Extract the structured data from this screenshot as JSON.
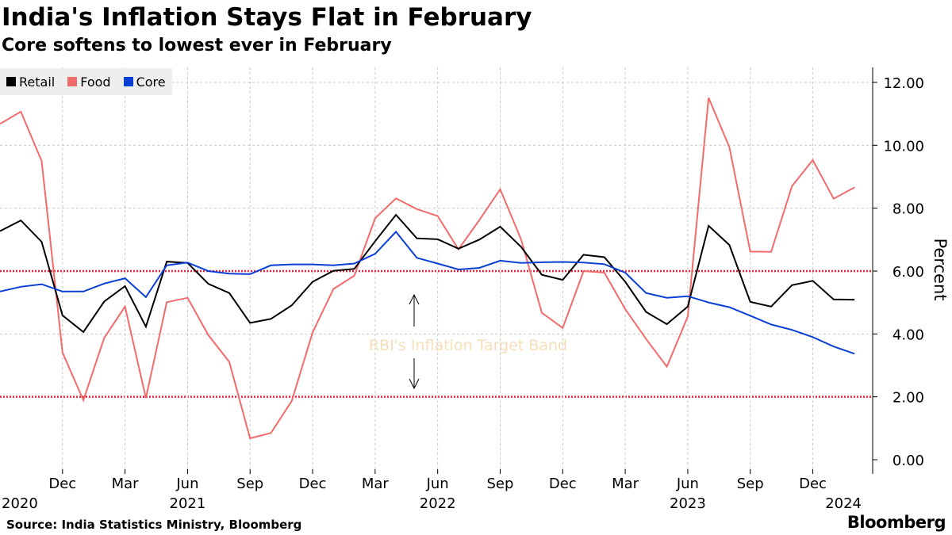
{
  "title": "India's Inflation Stays Flat in February",
  "subtitle": "Core softens to lowest ever in February",
  "source": "Source: India Statistics Ministry, Bloomberg",
  "brand": "Bloomberg",
  "chart_data": {
    "type": "line",
    "title": "India's Inflation Stays Flat in February",
    "subtitle": "Core softens to lowest ever in February",
    "ylabel": "Percent",
    "ylim": [
      0,
      12
    ],
    "yticks": [
      "0.00",
      "2.00",
      "4.00",
      "6.00",
      "8.00",
      "10.00",
      "12.00"
    ],
    "ytick_values": [
      0,
      2,
      4,
      6,
      8,
      10,
      12
    ],
    "x_start": "2020-09",
    "x_end": "2024-02",
    "xticks": [
      {
        "index": 3,
        "month": "Dec",
        "year": "2020"
      },
      {
        "index": 6,
        "month": "Mar",
        "year": ""
      },
      {
        "index": 9,
        "month": "Jun",
        "year": "2021"
      },
      {
        "index": 12,
        "month": "Sep",
        "year": ""
      },
      {
        "index": 15,
        "month": "Dec",
        "year": ""
      },
      {
        "index": 18,
        "month": "Mar",
        "year": ""
      },
      {
        "index": 21,
        "month": "Jun",
        "year": "2022"
      },
      {
        "index": 24,
        "month": "Sep",
        "year": ""
      },
      {
        "index": 27,
        "month": "Dec",
        "year": ""
      },
      {
        "index": 30,
        "month": "Mar",
        "year": ""
      },
      {
        "index": 33,
        "month": "Jun",
        "year": "2023"
      },
      {
        "index": 36,
        "month": "Sep",
        "year": ""
      },
      {
        "index": 39,
        "month": "Dec",
        "year": "2024"
      }
    ],
    "legend_position": "top-left",
    "grid": true,
    "reference_lines": [
      2,
      6
    ],
    "annotation": "RBI's Inflation Target Band",
    "series": [
      {
        "name": "Retail",
        "color": "#000000",
        "values": [
          7.27,
          7.61,
          6.93,
          4.59,
          4.06,
          5.03,
          5.52,
          4.23,
          6.3,
          6.26,
          5.59,
          5.3,
          4.35,
          4.48,
          4.91,
          5.66,
          6.01,
          6.07,
          6.95,
          7.79,
          7.04,
          7.01,
          6.71,
          7.0,
          7.41,
          6.77,
          5.88,
          5.72,
          6.52,
          6.44,
          5.66,
          4.7,
          4.31,
          4.87,
          7.44,
          6.83,
          5.02,
          4.87,
          5.55,
          5.69,
          5.1,
          5.09
        ]
      },
      {
        "name": "Food",
        "color": "#f26b6b",
        "values": [
          10.68,
          11.07,
          9.5,
          3.41,
          1.89,
          3.87,
          4.87,
          1.96,
          5.01,
          5.15,
          3.96,
          3.11,
          0.68,
          0.85,
          1.87,
          4.05,
          5.43,
          5.85,
          7.68,
          8.31,
          7.97,
          7.75,
          6.69,
          7.62,
          8.6,
          7.01,
          4.67,
          4.19,
          6.0,
          5.95,
          4.79,
          3.84,
          2.96,
          4.55,
          11.51,
          9.94,
          6.62,
          6.61,
          8.7,
          9.53,
          8.3,
          8.66
        ]
      },
      {
        "name": "Core",
        "color": "#0a3fd6",
        "values": [
          5.35,
          5.5,
          5.58,
          5.35,
          5.35,
          5.6,
          5.77,
          5.17,
          6.18,
          6.27,
          6.0,
          5.92,
          5.9,
          6.18,
          6.21,
          6.21,
          6.18,
          6.24,
          6.55,
          7.25,
          6.42,
          6.24,
          6.05,
          6.1,
          6.33,
          6.26,
          6.28,
          6.29,
          6.27,
          6.22,
          5.95,
          5.3,
          5.15,
          5.2,
          5.0,
          4.85,
          4.58,
          4.3,
          4.13,
          3.9,
          3.6,
          3.37
        ]
      }
    ]
  }
}
